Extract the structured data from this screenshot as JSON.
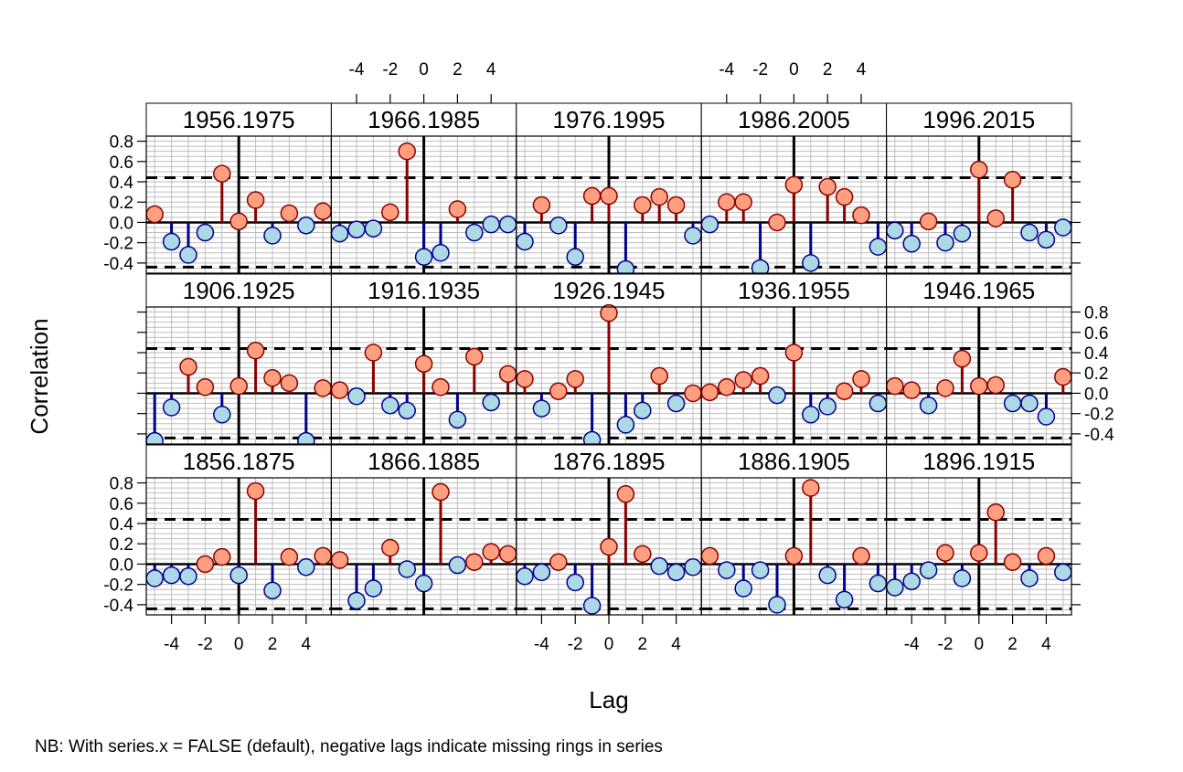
{
  "chart_data": {
    "type": "lollipop",
    "xlabel": "Lag",
    "ylabel": "Correlation",
    "note": "NB: With series.x = FALSE (default), negative lags indicate missing rings in series",
    "x_ticks": [
      -4,
      -2,
      0,
      2,
      4
    ],
    "y_ticks": [
      -0.4,
      -0.2,
      0.0,
      0.2,
      0.4,
      0.6,
      0.8
    ],
    "y_tick_labels": [
      "-0.4",
      "-0.2",
      "0.0",
      "0.2",
      "0.4",
      "0.6",
      "0.8"
    ],
    "xlim": [
      -5.5,
      5.5
    ],
    "ylim": [
      -0.5,
      0.85
    ],
    "significance_level": 0.44,
    "lags": [
      -5,
      -4,
      -3,
      -2,
      -1,
      0,
      1,
      2,
      3,
      4,
      5
    ],
    "colors": {
      "positive_fill": "#ff9f80",
      "positive_stroke": "#8b0000",
      "negative_fill": "#add8e6",
      "negative_stroke": "#00008b",
      "strip_bg": "#ffffff",
      "grid": "#bebebe"
    },
    "panels": [
      {
        "label": "1956.1975",
        "values": [
          0.08,
          -0.19,
          -0.32,
          -0.1,
          0.48,
          0.01,
          0.22,
          -0.13,
          0.09,
          -0.03,
          0.11
        ]
      },
      {
        "label": "1966.1985",
        "values": [
          -0.11,
          -0.07,
          -0.06,
          0.1,
          0.7,
          -0.34,
          -0.3,
          0.13,
          -0.1,
          -0.02,
          -0.02
        ]
      },
      {
        "label": "1976.1995",
        "values": [
          -0.19,
          0.17,
          -0.03,
          -0.34,
          0.26,
          0.26,
          -0.46,
          0.17,
          0.25,
          0.17,
          -0.13
        ]
      },
      {
        "label": "1986.2005",
        "values": [
          -0.02,
          0.2,
          0.2,
          -0.45,
          0.0,
          0.37,
          -0.4,
          0.35,
          0.25,
          0.07,
          -0.24
        ]
      },
      {
        "label": "1996.2015",
        "values": [
          -0.08,
          -0.21,
          0.01,
          -0.2,
          -0.11,
          0.52,
          0.04,
          0.42,
          -0.1,
          -0.17,
          -0.05
        ]
      },
      {
        "label": "1906.1925",
        "values": [
          -0.47,
          -0.14,
          0.26,
          0.06,
          -0.21,
          0.07,
          0.42,
          0.15,
          0.1,
          -0.47,
          0.05
        ]
      },
      {
        "label": "1916.1935",
        "values": [
          0.03,
          -0.03,
          0.4,
          -0.12,
          -0.17,
          0.29,
          0.06,
          -0.26,
          0.36,
          -0.09,
          0.19
        ]
      },
      {
        "label": "1926.1945",
        "values": [
          0.14,
          -0.15,
          0.02,
          0.14,
          -0.46,
          0.79,
          -0.31,
          -0.17,
          0.17,
          -0.1,
          0.0
        ]
      },
      {
        "label": "1936.1955",
        "values": [
          0.01,
          0.06,
          0.13,
          0.17,
          -0.02,
          0.4,
          -0.21,
          -0.13,
          0.02,
          0.14,
          -0.1
        ]
      },
      {
        "label": "1946.1965",
        "values": [
          0.07,
          0.03,
          -0.12,
          0.05,
          0.34,
          0.07,
          0.08,
          -0.1,
          -0.1,
          -0.23,
          0.16
        ]
      },
      {
        "label": "1856.1875",
        "values": [
          -0.14,
          -0.11,
          -0.12,
          0.0,
          0.07,
          -0.11,
          0.72,
          -0.26,
          0.07,
          -0.03,
          0.08
        ]
      },
      {
        "label": "1866.1885",
        "values": [
          0.04,
          -0.36,
          -0.24,
          0.16,
          -0.05,
          -0.19,
          0.71,
          -0.01,
          0.02,
          0.12,
          0.1
        ]
      },
      {
        "label": "1876.1895",
        "values": [
          -0.12,
          -0.08,
          0.02,
          -0.18,
          -0.41,
          0.17,
          0.69,
          0.1,
          -0.02,
          -0.08,
          -0.03
        ]
      },
      {
        "label": "1886.1905",
        "values": [
          0.08,
          -0.06,
          -0.24,
          -0.06,
          -0.4,
          0.08,
          0.75,
          -0.11,
          -0.35,
          0.08,
          -0.19
        ]
      },
      {
        "label": "1896.1915",
        "values": [
          -0.23,
          -0.17,
          -0.06,
          0.11,
          -0.14,
          0.11,
          0.51,
          0.02,
          -0.14,
          0.08,
          -0.08
        ]
      }
    ]
  }
}
